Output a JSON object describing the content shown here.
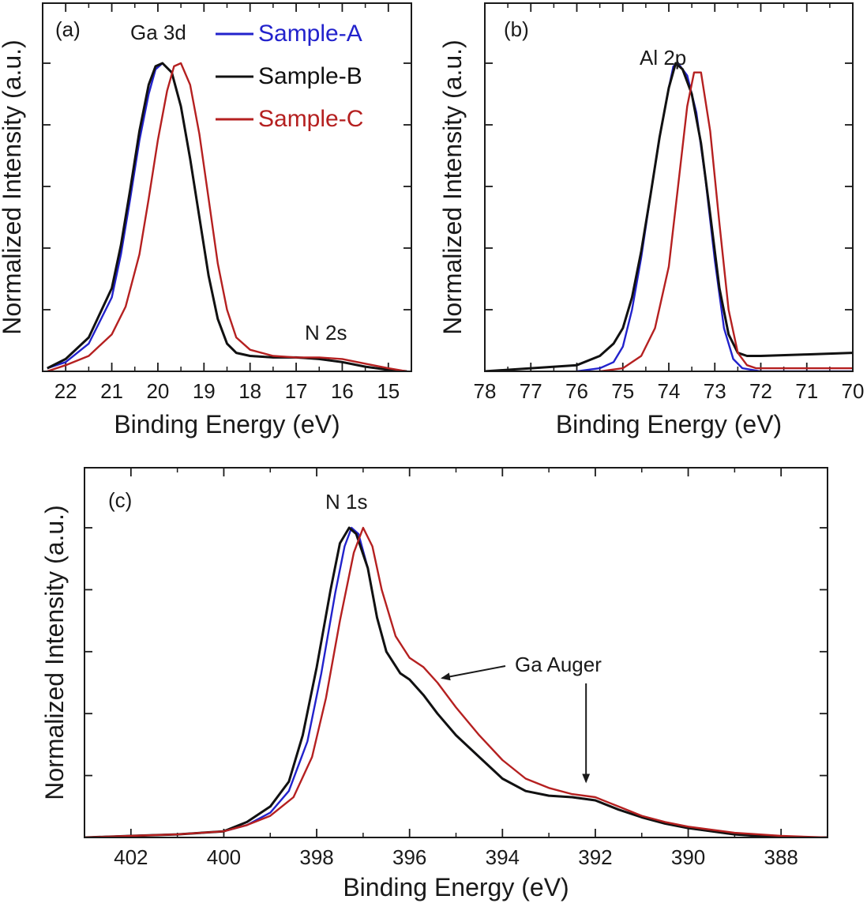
{
  "colors": {
    "sample_a": "#2222cc",
    "sample_b": "#111111",
    "sample_c": "#b52020",
    "axes": "#1a1a1a"
  },
  "legend": {
    "items": [
      {
        "label": "Sample-A",
        "color": "#2222cc"
      },
      {
        "label": "Sample-B",
        "color": "#111111"
      },
      {
        "label": "Sample-C",
        "color": "#b52020"
      }
    ]
  },
  "chart_data": [
    {
      "type": "line",
      "panel_label": "(a)",
      "peak_label": "Ga 3d",
      "annotation": "N 2s",
      "xlabel": "Binding Energy (eV)",
      "ylabel": "Normalized Intensity (a.u.)",
      "xlim": [
        22.5,
        14.5
      ],
      "ylim": [
        0,
        1.0
      ],
      "xticks": [
        22,
        21,
        20,
        19,
        18,
        17,
        16,
        15
      ],
      "series": [
        {
          "name": "Sample-A",
          "x": [
            22.4,
            22,
            21.5,
            21,
            20.8,
            20.6,
            20.4,
            20.2,
            20.05,
            19.9,
            19.7,
            19.5,
            19.3,
            19.1,
            18.9,
            18.7,
            18.5,
            18.3,
            18,
            17.5,
            17,
            16.5,
            16,
            15.5,
            15,
            14.6
          ],
          "y": [
            0.01,
            0.03,
            0.09,
            0.24,
            0.38,
            0.56,
            0.75,
            0.9,
            0.98,
            1.0,
            0.97,
            0.86,
            0.69,
            0.5,
            0.31,
            0.17,
            0.09,
            0.06,
            0.05,
            0.045,
            0.045,
            0.04,
            0.03,
            0.015,
            0.005,
            0.0
          ]
        },
        {
          "name": "Sample-B",
          "x": [
            22.4,
            22,
            21.5,
            21,
            20.8,
            20.6,
            20.4,
            20.2,
            20.05,
            19.9,
            19.7,
            19.5,
            19.3,
            19.1,
            18.9,
            18.7,
            18.5,
            18.3,
            18,
            17.5,
            17,
            16.5,
            16,
            15.5,
            15,
            14.6
          ],
          "y": [
            0.01,
            0.04,
            0.11,
            0.27,
            0.41,
            0.59,
            0.78,
            0.93,
            0.99,
            1.0,
            0.97,
            0.86,
            0.69,
            0.5,
            0.31,
            0.17,
            0.09,
            0.06,
            0.05,
            0.045,
            0.045,
            0.04,
            0.03,
            0.015,
            0.005,
            0.0
          ]
        },
        {
          "name": "Sample-C",
          "x": [
            22.4,
            22,
            21.5,
            21,
            20.7,
            20.4,
            20.2,
            20,
            19.8,
            19.65,
            19.5,
            19.3,
            19.1,
            18.9,
            18.7,
            18.5,
            18.3,
            18,
            17.5,
            17,
            16.5,
            16,
            15.5,
            15,
            14.6
          ],
          "y": [
            0.0,
            0.02,
            0.05,
            0.12,
            0.21,
            0.38,
            0.56,
            0.75,
            0.91,
            0.99,
            1.0,
            0.93,
            0.77,
            0.56,
            0.35,
            0.2,
            0.11,
            0.07,
            0.05,
            0.045,
            0.045,
            0.04,
            0.025,
            0.01,
            0.0
          ]
        }
      ]
    },
    {
      "type": "line",
      "panel_label": "(b)",
      "peak_label": "Al 2p",
      "xlabel": "Binding Energy (eV)",
      "ylabel": "Normalized Intensity (a.u.)",
      "xlim": [
        78,
        70
      ],
      "ylim": [
        0,
        1.0
      ],
      "xticks": [
        78,
        77,
        76,
        75,
        74,
        73,
        72,
        71,
        70
      ],
      "series": [
        {
          "name": "Sample-A",
          "x": [
            76,
            75.5,
            75.2,
            75,
            74.8,
            74.6,
            74.4,
            74.2,
            74,
            73.9,
            73.8,
            73.6,
            73.4,
            73.2,
            73,
            72.8,
            72.6,
            72.4,
            72,
            71,
            70
          ],
          "y": [
            0.0,
            0.01,
            0.03,
            0.08,
            0.2,
            0.37,
            0.57,
            0.76,
            0.92,
            0.99,
            1.0,
            0.96,
            0.84,
            0.62,
            0.36,
            0.14,
            0.04,
            0.01,
            0.0,
            0.0,
            0.0
          ]
        },
        {
          "name": "Sample-B",
          "x": [
            78,
            77,
            76,
            75.5,
            75.2,
            75,
            74.8,
            74.6,
            74.4,
            74.2,
            74,
            73.85,
            73.7,
            73.5,
            73.3,
            73.1,
            72.9,
            72.7,
            72.5,
            72.3,
            72,
            71,
            70
          ],
          "y": [
            0.0,
            0.01,
            0.02,
            0.05,
            0.09,
            0.14,
            0.24,
            0.39,
            0.57,
            0.76,
            0.92,
            1.0,
            0.98,
            0.9,
            0.74,
            0.51,
            0.27,
            0.12,
            0.06,
            0.05,
            0.05,
            0.055,
            0.06
          ]
        },
        {
          "name": "Sample-C",
          "x": [
            75.5,
            75,
            74.6,
            74.3,
            74,
            73.8,
            73.6,
            73.45,
            73.3,
            73.1,
            72.9,
            72.7,
            72.5,
            72.3,
            72.1,
            71.5,
            71,
            70.5,
            70
          ],
          "y": [
            0.0,
            0.01,
            0.05,
            0.14,
            0.34,
            0.6,
            0.86,
            0.97,
            0.97,
            0.78,
            0.48,
            0.2,
            0.06,
            0.02,
            0.01,
            0.01,
            0.01,
            0.01,
            0.01
          ]
        }
      ]
    },
    {
      "type": "line",
      "panel_label": "(c)",
      "peak_label": "N 1s",
      "annotation": "Ga Auger",
      "xlabel": "Binding Energy (eV)",
      "ylabel": "Normalized Intensity (a.u.)",
      "xlim": [
        403,
        387
      ],
      "ylim": [
        0,
        1.0
      ],
      "xticks": [
        402,
        400,
        398,
        396,
        394,
        392,
        390,
        388
      ],
      "series": [
        {
          "name": "Sample-A",
          "x": [
            403,
            402,
            401,
            400,
            399.5,
            399,
            398.6,
            398.2,
            397.9,
            397.6,
            397.4,
            397.25,
            397.1,
            396.9,
            396.7,
            396.5,
            396.2,
            396,
            395.7,
            395.4,
            395,
            394.5,
            394,
            393.5,
            393,
            392.5,
            392,
            391.5,
            391,
            390.5,
            390,
            389,
            388,
            387
          ],
          "y": [
            0.0,
            0.005,
            0.01,
            0.02,
            0.04,
            0.08,
            0.15,
            0.31,
            0.53,
            0.79,
            0.94,
            1.0,
            0.98,
            0.87,
            0.71,
            0.6,
            0.53,
            0.51,
            0.46,
            0.4,
            0.33,
            0.26,
            0.19,
            0.15,
            0.135,
            0.13,
            0.12,
            0.09,
            0.065,
            0.045,
            0.03,
            0.01,
            0.0,
            0.0
          ]
        },
        {
          "name": "Sample-B",
          "x": [
            403,
            402,
            401,
            400,
            399.5,
            399,
            398.6,
            398.3,
            398,
            397.7,
            397.5,
            397.3,
            397.15,
            396.9,
            396.7,
            396.5,
            396.2,
            396,
            395.7,
            395.4,
            395,
            394.5,
            394,
            393.5,
            393,
            392.5,
            392,
            391.5,
            391,
            390.5,
            390,
            389,
            388,
            387
          ],
          "y": [
            0.0,
            0.005,
            0.01,
            0.02,
            0.05,
            0.1,
            0.18,
            0.33,
            0.55,
            0.8,
            0.95,
            1.0,
            0.98,
            0.87,
            0.71,
            0.6,
            0.53,
            0.51,
            0.46,
            0.4,
            0.33,
            0.26,
            0.19,
            0.15,
            0.135,
            0.13,
            0.12,
            0.09,
            0.065,
            0.045,
            0.03,
            0.01,
            0.0,
            0.0
          ]
        },
        {
          "name": "Sample-C",
          "x": [
            403,
            402,
            401,
            400,
            399.5,
            399,
            398.5,
            398.1,
            397.8,
            397.5,
            397.2,
            397,
            396.8,
            396.6,
            396.3,
            396,
            395.7,
            395.4,
            395,
            394.5,
            394,
            393.5,
            393,
            392.5,
            392,
            391.5,
            391,
            390.5,
            390,
            389,
            388,
            387
          ],
          "y": [
            0.0,
            0.005,
            0.01,
            0.02,
            0.04,
            0.07,
            0.13,
            0.26,
            0.45,
            0.7,
            0.92,
            1.0,
            0.94,
            0.8,
            0.65,
            0.58,
            0.55,
            0.5,
            0.42,
            0.33,
            0.25,
            0.19,
            0.16,
            0.14,
            0.13,
            0.1,
            0.07,
            0.05,
            0.035,
            0.015,
            0.005,
            0.0
          ]
        }
      ]
    }
  ]
}
